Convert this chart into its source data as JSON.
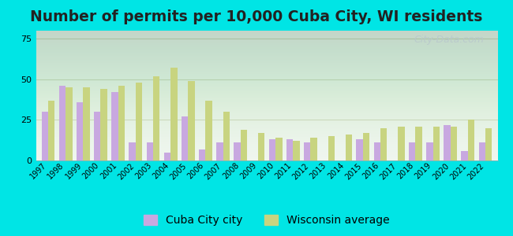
{
  "title": "Number of permits per 10,000 Cuba City, WI residents",
  "years": [
    1997,
    1998,
    1999,
    2000,
    2001,
    2002,
    2003,
    2004,
    2005,
    2006,
    2007,
    2008,
    2009,
    2010,
    2011,
    2012,
    2013,
    2014,
    2015,
    2016,
    2017,
    2018,
    2019,
    2020,
    2021,
    2022
  ],
  "cuba_city": [
    30,
    46,
    36,
    30,
    42,
    11,
    11,
    5,
    27,
    7,
    11,
    11,
    0,
    13,
    13,
    11,
    0,
    0,
    13,
    11,
    0,
    11,
    11,
    22,
    6,
    11
  ],
  "wisconsin": [
    37,
    45,
    45,
    44,
    46,
    48,
    52,
    57,
    49,
    37,
    30,
    19,
    17,
    14,
    12,
    14,
    15,
    16,
    17,
    20,
    21,
    21,
    21,
    21,
    25,
    20
  ],
  "cuba_color": "#c8a8e0",
  "wisc_color": "#c8d480",
  "background_outer": "#00e5e5",
  "grid_color": "#d0d8c0",
  "yticks": [
    0,
    25,
    50,
    75
  ],
  "ylim": [
    0,
    80
  ],
  "title_fontsize": 13.5,
  "tick_fontsize": 7,
  "legend_fontsize": 10,
  "watermark_text": "City-Data.com",
  "legend_label_cuba": "Cuba City city",
  "legend_label_wisc": "Wisconsin average"
}
